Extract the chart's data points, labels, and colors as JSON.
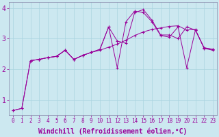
{
  "xlabel": "Windchill (Refroidissement éolien,°C)",
  "bg_color": "#cce8f0",
  "grid_color": "#aad4e0",
  "line_color": "#990099",
  "xlim": [
    -0.5,
    23.5
  ],
  "ylim": [
    0.5,
    4.2
  ],
  "xticks": [
    0,
    1,
    2,
    3,
    4,
    5,
    6,
    7,
    8,
    9,
    10,
    11,
    12,
    13,
    14,
    15,
    16,
    17,
    18,
    19,
    20,
    21,
    22,
    23
  ],
  "yticks": [
    1,
    2,
    3,
    4
  ],
  "line1_x": [
    0,
    1,
    2,
    3,
    4,
    5,
    6,
    7,
    8,
    9,
    10,
    11,
    12,
    13,
    14,
    15,
    16,
    17,
    18,
    19,
    20,
    21,
    22,
    23
  ],
  "line1_y": [
    0.65,
    0.72,
    2.28,
    2.32,
    2.38,
    2.42,
    2.62,
    2.32,
    2.45,
    2.55,
    2.62,
    2.72,
    2.82,
    2.95,
    3.1,
    3.22,
    3.3,
    3.35,
    3.4,
    3.42,
    3.28,
    3.3,
    2.68,
    2.62
  ],
  "line2_x": [
    0,
    1,
    2,
    3,
    4,
    5,
    6,
    7,
    8,
    9,
    10,
    11,
    12,
    13,
    14,
    15,
    16,
    17,
    18,
    19,
    20,
    21,
    22,
    23
  ],
  "line2_y": [
    0.65,
    0.72,
    2.28,
    2.32,
    2.38,
    2.42,
    2.62,
    2.32,
    2.45,
    2.55,
    2.65,
    3.38,
    2.05,
    3.55,
    3.9,
    3.85,
    3.55,
    3.1,
    3.05,
    3.38,
    2.05,
    3.28,
    2.7,
    2.65
  ],
  "line3_x": [
    2,
    3,
    4,
    5,
    6,
    7,
    8,
    9,
    10,
    11,
    12,
    13,
    14,
    15,
    16,
    17,
    18,
    19,
    20,
    21,
    22,
    23
  ],
  "line3_y": [
    2.28,
    2.32,
    2.38,
    2.42,
    2.62,
    2.32,
    2.45,
    2.55,
    2.65,
    3.38,
    2.92,
    2.85,
    3.85,
    3.95,
    3.6,
    3.12,
    3.12,
    3.0,
    3.38,
    3.28,
    2.7,
    2.65
  ],
  "font_size_label": 7,
  "font_size_tick": 5.5
}
